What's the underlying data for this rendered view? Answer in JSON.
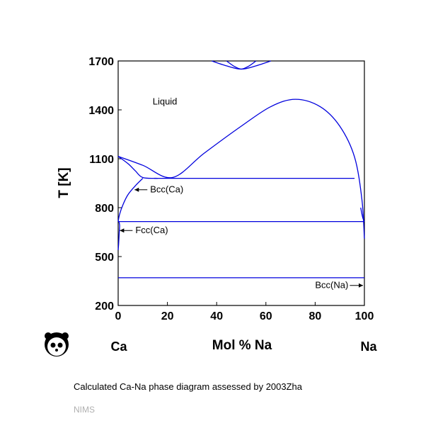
{
  "chart_data": {
    "type": "line",
    "title": "",
    "xlabel": "Mol % Na",
    "ylabel": "T [K]",
    "xlim": [
      0,
      100
    ],
    "ylim": [
      200,
      1700
    ],
    "xticks": [
      0,
      20,
      40,
      60,
      80,
      100
    ],
    "yticks": [
      200,
      500,
      800,
      1100,
      1400,
      1700
    ],
    "left_element": "Ca",
    "right_element": "Na",
    "line_color": "#0000dd",
    "annotations": [
      {
        "text": "Liquid",
        "x": 14,
        "y": 1450,
        "arrow": "none"
      },
      {
        "text": "Bcc(Ca)",
        "x": 13,
        "y": 910,
        "arrow": "left"
      },
      {
        "text": "Fcc(Ca)",
        "x": 7,
        "y": 660,
        "arrow": "left"
      },
      {
        "text": "Bcc(Na)",
        "x": 80,
        "y": 323,
        "arrow": "right"
      }
    ],
    "series": [
      {
        "values": [
          [
            0,
            1115
          ],
          [
            4,
            1070
          ],
          [
            7,
            1025
          ],
          [
            10,
            985
          ],
          [
            16,
            980
          ],
          [
            22,
            980
          ],
          [
            96,
            980
          ]
        ]
      },
      {
        "values": [
          [
            0,
            1115
          ],
          [
            10,
            1060
          ],
          [
            22,
            985
          ],
          [
            35,
            1135
          ],
          [
            50,
            1300
          ],
          [
            62,
            1420
          ],
          [
            72,
            1465
          ],
          [
            82,
            1420
          ],
          [
            90,
            1300
          ],
          [
            96,
            1110
          ],
          [
            99,
            850
          ],
          [
            100,
            610
          ]
        ]
      },
      {
        "values": [
          [
            0,
            715
          ],
          [
            0.6,
            760
          ],
          [
            2,
            820
          ],
          [
            4,
            880
          ],
          [
            7,
            935
          ],
          [
            10,
            980
          ]
        ]
      },
      {
        "values": [
          [
            0,
            715
          ],
          [
            100,
            715
          ]
        ]
      },
      {
        "values": [
          [
            0,
            370
          ],
          [
            100,
            370
          ]
        ]
      },
      {
        "values": [
          [
            0.3,
            715
          ],
          [
            0.6,
            690
          ],
          [
            0.4,
            640
          ],
          [
            0.2,
            580
          ],
          [
            0,
            540
          ]
        ]
      },
      {
        "values": [
          [
            100,
            715
          ],
          [
            99.3,
            740
          ],
          [
            98.5,
            800
          ]
        ]
      },
      {
        "values": [
          [
            38,
            1700
          ],
          [
            44,
            1670
          ],
          [
            50,
            1650
          ],
          [
            56,
            1670
          ],
          [
            62,
            1700
          ]
        ]
      },
      {
        "values": [
          [
            44,
            1700
          ],
          [
            47,
            1668
          ],
          [
            50,
            1650
          ],
          [
            53,
            1668
          ],
          [
            56,
            1700
          ]
        ]
      }
    ]
  },
  "caption": "Calculated Ca-Na phase diagram assessed by 2003Zha",
  "source": "NIMS"
}
